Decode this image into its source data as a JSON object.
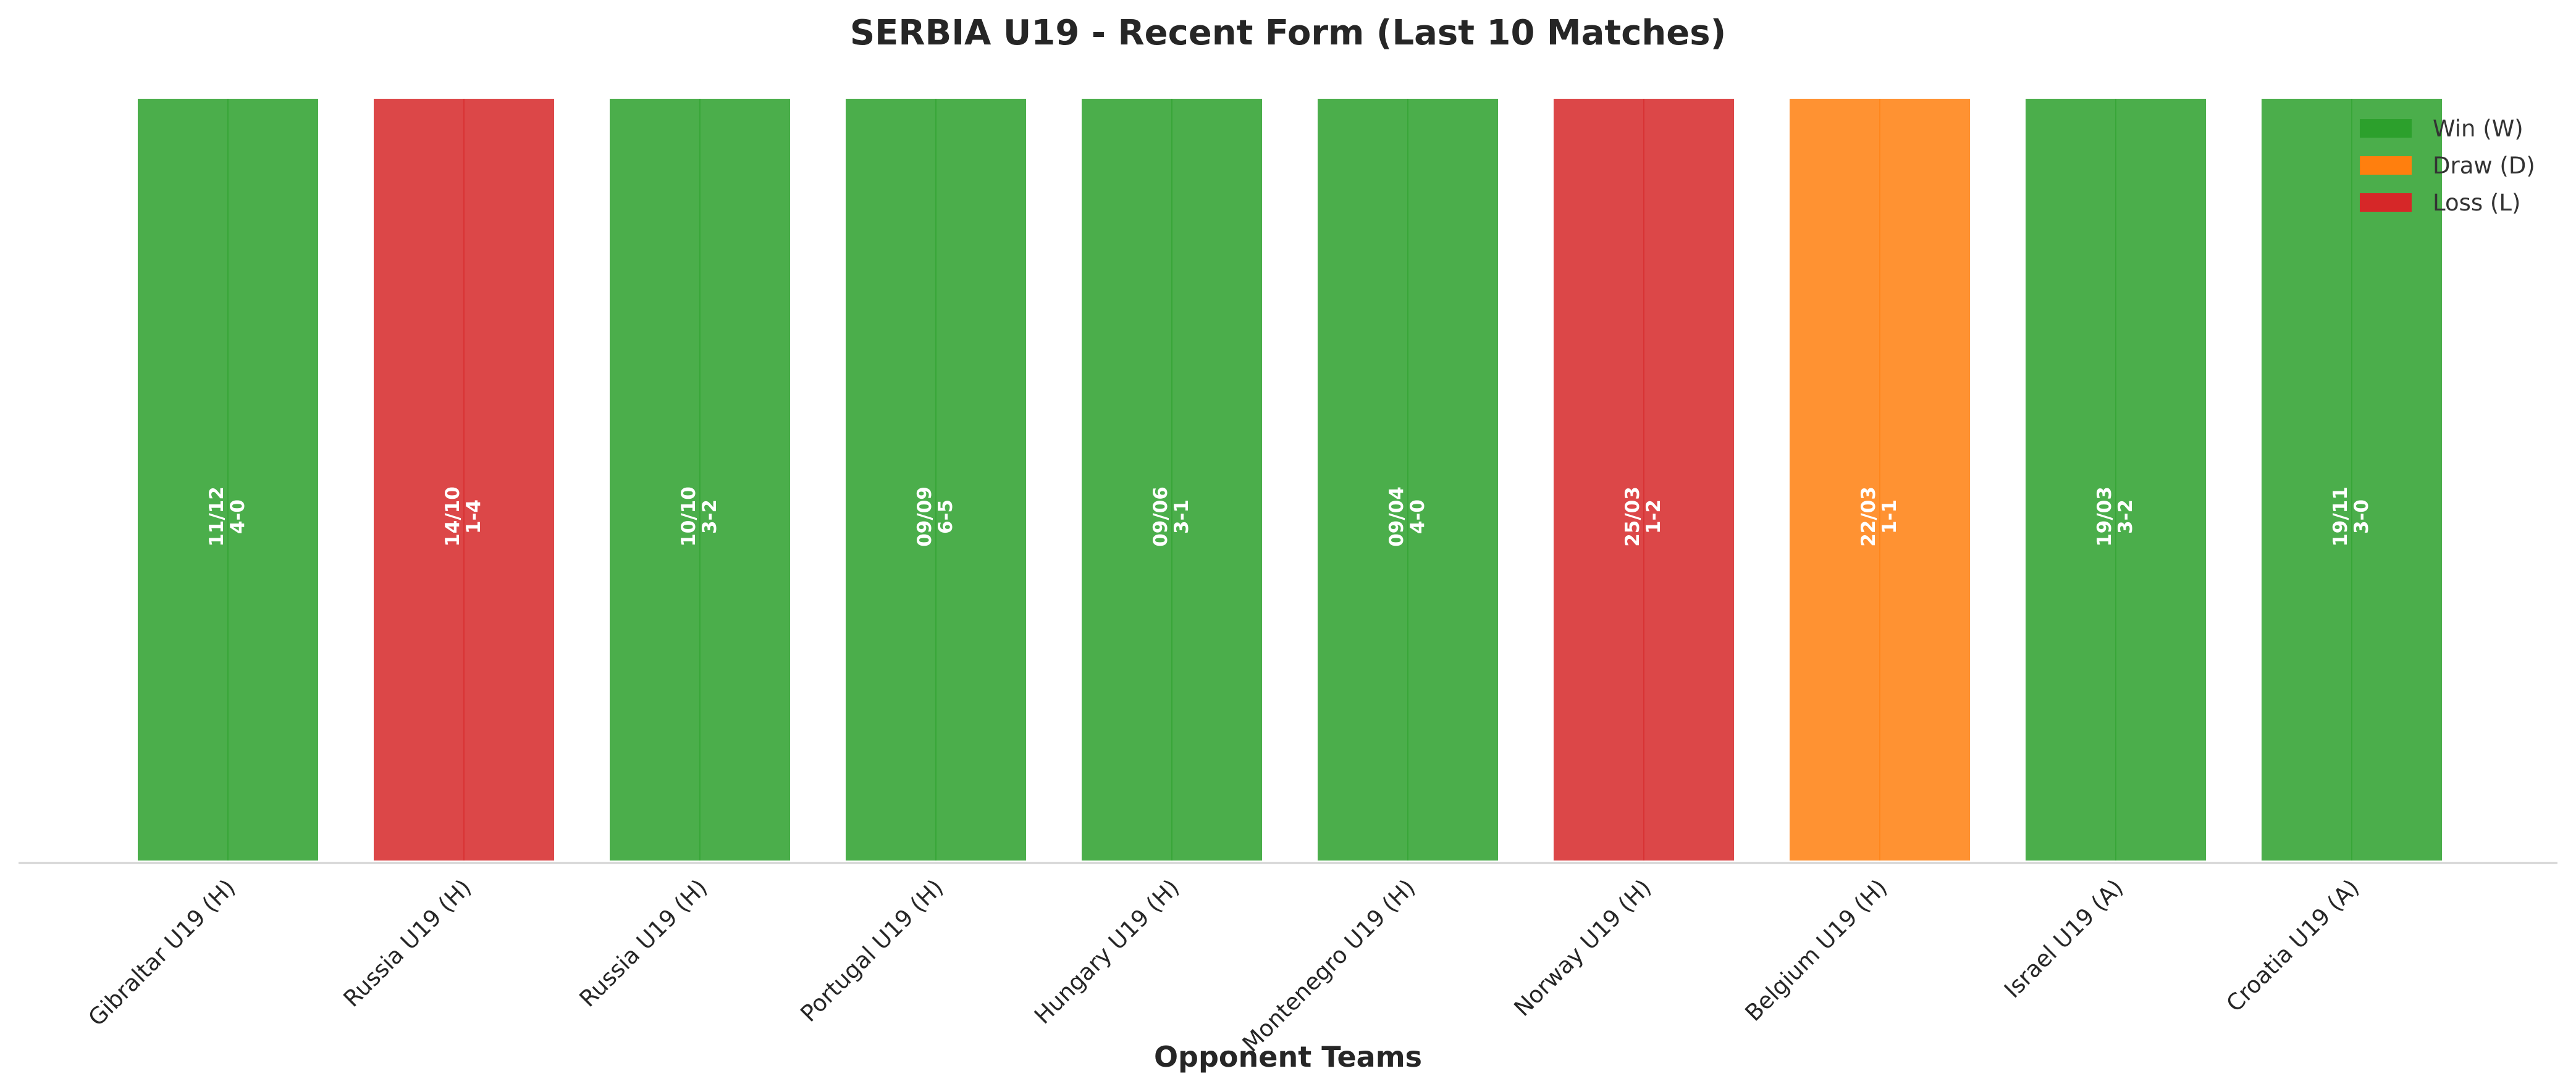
{
  "chart_data": {
    "type": "bar",
    "title": "SERBIA U19 - Recent Form (Last 10 Matches)",
    "xlabel": "Opponent Teams",
    "ylabel": "",
    "ylim": [
      0,
      1
    ],
    "grid": false,
    "legend_position": "top-right",
    "categories": [
      "Gibraltar U19 (H)",
      "Russia U19 (H)",
      "Russia U19 (H)",
      "Portugal U19 (H)",
      "Hungary U19 (H)",
      "Montenegro U19 (H)",
      "Norway U19 (H)",
      "Belgium U19 (H)",
      "Israel U19 (A)",
      "Croatia U19 (A)"
    ],
    "values": [
      1,
      1,
      1,
      1,
      1,
      1,
      1,
      1,
      1,
      1
    ],
    "results": [
      "W",
      "L",
      "W",
      "W",
      "W",
      "W",
      "L",
      "D",
      "W",
      "W"
    ],
    "dates": [
      "11/12",
      "14/10",
      "10/10",
      "09/09",
      "09/06",
      "09/04",
      "25/03",
      "22/03",
      "19/03",
      "19/11"
    ],
    "scores": [
      "4-0",
      "1-4",
      "3-2",
      "6-5",
      "3-1",
      "4-0",
      "1-2",
      "1-1",
      "3-2",
      "3-0"
    ],
    "legend": [
      {
        "key": "W",
        "label": "Win (W)",
        "color": "#2ca02c"
      },
      {
        "key": "D",
        "label": "Draw (D)",
        "color": "#ff7f0e"
      },
      {
        "key": "L",
        "label": "Loss (L)",
        "color": "#d62728"
      }
    ]
  }
}
